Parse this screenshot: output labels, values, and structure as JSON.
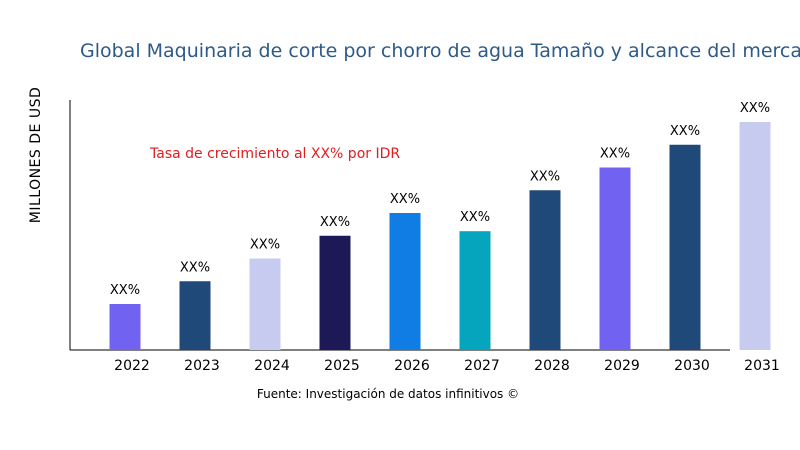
{
  "chart_data": {
    "type": "bar",
    "title": "Global Maquinaria de corte por chorro de agua Tamaño y alcance del mercado",
    "ylabel": "MILLONES DE USD",
    "annotation": "Tasa de crecimiento al XX% por IDR",
    "source": "Fuente: Investigación de datos infinitivos ©",
    "categories": [
      "2022",
      "2023",
      "2024",
      "2025",
      "2026",
      "2027",
      "2028",
      "2029",
      "2030",
      "2031"
    ],
    "values": [
      20,
      30,
      40,
      50,
      60,
      52,
      70,
      80,
      90,
      100
    ],
    "data_labels": [
      "XX%",
      "XX%",
      "XX%",
      "XX%",
      "XX%",
      "XX%",
      "XX%",
      "XX%",
      "XX%",
      "XX%"
    ],
    "colors": [
      "#7262f2",
      "#1f4979",
      "#c8cbf0",
      "#1d1856",
      "#0f7de3",
      "#04a5bd",
      "#1f4979",
      "#7262f2",
      "#1f4979",
      "#c8cbf0"
    ],
    "ylim": [
      0,
      100
    ],
    "grid": false,
    "legend": "none"
  }
}
